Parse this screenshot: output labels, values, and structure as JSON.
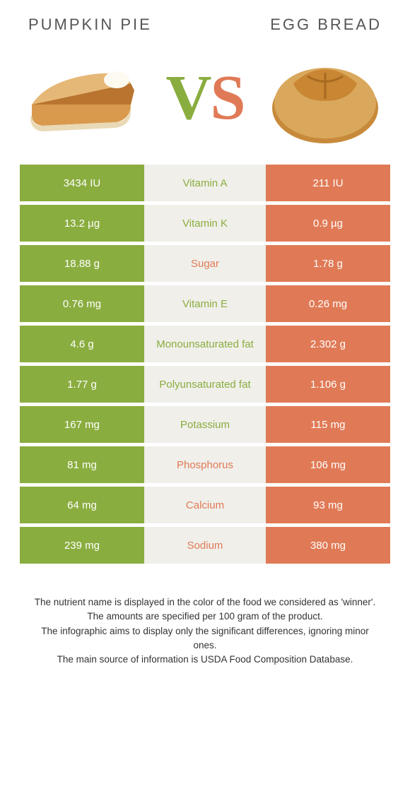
{
  "colors": {
    "left": "#8aad3f",
    "right": "#e07a56",
    "mid_bg": "#f0efea",
    "text": "#333333"
  },
  "header": {
    "left_title": "Pumpkin pie",
    "right_title": "Egg bread",
    "vs_v": "V",
    "vs_s": "S"
  },
  "rows": [
    {
      "left": "3434 IU",
      "label": "Vitamin A",
      "right": "211 IU",
      "winner": "left"
    },
    {
      "left": "13.2 µg",
      "label": "Vitamin K",
      "right": "0.9 µg",
      "winner": "left"
    },
    {
      "left": "18.88 g",
      "label": "Sugar",
      "right": "1.78 g",
      "winner": "right"
    },
    {
      "left": "0.76 mg",
      "label": "Vitamin E",
      "right": "0.26 mg",
      "winner": "left"
    },
    {
      "left": "4.6 g",
      "label": "Monounsaturated fat",
      "right": "2.302 g",
      "winner": "left"
    },
    {
      "left": "1.77 g",
      "label": "Polyunsaturated fat",
      "right": "1.106 g",
      "winner": "left"
    },
    {
      "left": "167 mg",
      "label": "Potassium",
      "right": "115 mg",
      "winner": "left"
    },
    {
      "left": "81 mg",
      "label": "Phosphorus",
      "right": "106 mg",
      "winner": "right"
    },
    {
      "left": "64 mg",
      "label": "Calcium",
      "right": "93 mg",
      "winner": "right"
    },
    {
      "left": "239 mg",
      "label": "Sodium",
      "right": "380 mg",
      "winner": "right"
    }
  ],
  "footer": {
    "line1": "The nutrient name is displayed in the color of the food we considered as 'winner'.",
    "line2": "The amounts are specified per 100 gram of the product.",
    "line3": "The infographic aims to display only the significant differences, ignoring minor ones.",
    "line4": "The main source of information is USDA Food Composition Database."
  }
}
